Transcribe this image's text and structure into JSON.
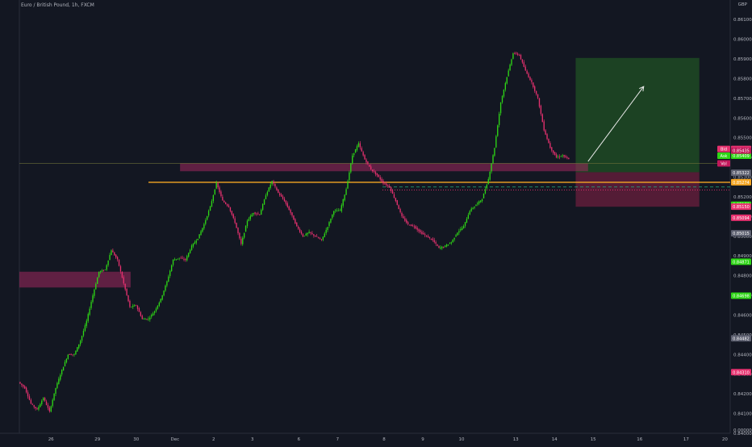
{
  "chart": {
    "title": "Euro / British Pound, 1h, FXCM",
    "currency": "GBP",
    "zero_label": "0.00000",
    "colors": {
      "background": "#131722",
      "up": "#2ed616",
      "down": "#e6316f",
      "grid": "#1e222d",
      "zone_purple": "#a0285f",
      "target_zone": "#1e4a23",
      "stop_zone": "#6b1f3d",
      "orange_line": "#f5a623",
      "arrow": "#e8e8e8"
    },
    "price_tags": [
      {
        "value": "0.85160",
        "color": "#2ed616"
      },
      {
        "value": "0.85094",
        "color": "#e6316f"
      },
      {
        "value": "0.85015",
        "color": "#5d6070"
      },
      {
        "value": "0.85443",
        "color": "#e6316f"
      },
      {
        "value": "0.85409",
        "color": "#2ed616"
      },
      {
        "value": "0.85435",
        "color": "#c2185b"
      },
      {
        "value": "0.85322",
        "color": "#5d6070"
      },
      {
        "value": "0.85274",
        "color": "#f5a623"
      },
      {
        "value": "0.85150",
        "color": "#e6316f"
      },
      {
        "value": "0.84871",
        "color": "#2ed616"
      },
      {
        "value": "0.84698",
        "color": "#2ed616"
      },
      {
        "value": "0.84482",
        "color": "#5d6070"
      },
      {
        "value": "0.84310",
        "color": "#e6316f"
      }
    ],
    "tag_side_labels": [
      "Bid",
      "Ask",
      "Vol"
    ]
  },
  "chart_data": {
    "type": "candlestick",
    "title": "Euro / British Pound, 1h, FXCM",
    "xlabel": "",
    "ylabel": "",
    "ylim": [
      0.84,
      0.8615
    ],
    "y_ticks": [
      "0.86100",
      "0.86000",
      "0.85900",
      "0.85800",
      "0.85700",
      "0.85600",
      "0.85500",
      "0.85400",
      "0.85300",
      "0.85200",
      "0.85100",
      "0.85000",
      "0.84900",
      "0.84800",
      "0.84700",
      "0.84600",
      "0.84500",
      "0.84400",
      "0.84300",
      "0.84200",
      "0.84100",
      "0.84000",
      "0.83900"
    ],
    "x_ticks": [
      "26",
      "29",
      "30",
      "Dec",
      "2",
      "3",
      "6",
      "7",
      "8",
      "9",
      "10",
      "13",
      "14",
      "15",
      "16",
      "17",
      "20"
    ],
    "price_path": [
      [
        0,
        0.8426
      ],
      [
        1,
        0.8423
      ],
      [
        2,
        0.8415
      ],
      [
        3,
        0.8412
      ],
      [
        4,
        0.8418
      ],
      [
        5,
        0.8411
      ],
      [
        6,
        0.8423
      ],
      [
        7,
        0.8432
      ],
      [
        8,
        0.844
      ],
      [
        9,
        0.844
      ],
      [
        10,
        0.8447
      ],
      [
        11,
        0.8457
      ],
      [
        12,
        0.847
      ],
      [
        13,
        0.8482
      ],
      [
        14,
        0.8483
      ],
      [
        15,
        0.8493
      ],
      [
        16,
        0.8488
      ],
      [
        17,
        0.8476
      ],
      [
        18,
        0.8464
      ],
      [
        19,
        0.8465
      ],
      [
        20,
        0.8458
      ],
      [
        21,
        0.8458
      ],
      [
        22,
        0.8462
      ],
      [
        23,
        0.8468
      ],
      [
        24,
        0.8477
      ],
      [
        25,
        0.8488
      ],
      [
        26,
        0.8489
      ],
      [
        27,
        0.8488
      ],
      [
        28,
        0.8495
      ],
      [
        29,
        0.8499
      ],
      [
        30,
        0.8506
      ],
      [
        31,
        0.8515
      ],
      [
        32,
        0.8527
      ],
      [
        33,
        0.8518
      ],
      [
        34,
        0.8515
      ],
      [
        35,
        0.8507
      ],
      [
        36,
        0.8496
      ],
      [
        37,
        0.8508
      ],
      [
        38,
        0.8512
      ],
      [
        39,
        0.8511
      ],
      [
        40,
        0.8521
      ],
      [
        41,
        0.8528
      ],
      [
        42,
        0.8522
      ],
      [
        43,
        0.8518
      ],
      [
        44,
        0.8512
      ],
      [
        45,
        0.8505
      ],
      [
        46,
        0.85
      ],
      [
        47,
        0.8502
      ],
      [
        48,
        0.85
      ],
      [
        49,
        0.8498
      ],
      [
        50,
        0.8505
      ],
      [
        51,
        0.8513
      ],
      [
        52,
        0.8513
      ],
      [
        53,
        0.8524
      ],
      [
        54,
        0.8541
      ],
      [
        55,
        0.8547
      ],
      [
        56,
        0.8539
      ],
      [
        57,
        0.8534
      ],
      [
        58,
        0.8531
      ],
      [
        59,
        0.8527
      ],
      [
        60,
        0.8525
      ],
      [
        61,
        0.8518
      ],
      [
        62,
        0.851
      ],
      [
        63,
        0.8506
      ],
      [
        64,
        0.8505
      ],
      [
        65,
        0.8502
      ],
      [
        66,
        0.85
      ],
      [
        67,
        0.8498
      ],
      [
        68,
        0.8494
      ],
      [
        69,
        0.8495
      ],
      [
        70,
        0.8497
      ],
      [
        71,
        0.8502
      ],
      [
        72,
        0.8505
      ],
      [
        73,
        0.8513
      ],
      [
        74,
        0.8516
      ],
      [
        75,
        0.8519
      ],
      [
        76,
        0.8529
      ],
      [
        77,
        0.8545
      ],
      [
        78,
        0.8568
      ],
      [
        79,
        0.8581
      ],
      [
        80,
        0.8593
      ],
      [
        81,
        0.8592
      ],
      [
        82,
        0.8584
      ],
      [
        83,
        0.8578
      ],
      [
        84,
        0.857
      ],
      [
        85,
        0.8554
      ],
      [
        86,
        0.8545
      ],
      [
        87,
        0.854
      ],
      [
        88,
        0.8541
      ],
      [
        89,
        0.8539
      ]
    ],
    "annotations": {
      "supply_zone_left": {
        "x_range": [
          0,
          18
        ],
        "y_range": [
          0.8474,
          0.8482
        ],
        "color": "#a0285f"
      },
      "purple_zone": {
        "x_range": [
          26,
          92
        ],
        "y_range": [
          0.8533,
          0.8537
        ],
        "color": "#a0285f"
      },
      "orange_level": 0.85274,
      "entry_dashed": 0.8525,
      "stop_dotted": 0.85235,
      "target_zone": {
        "x_range": [
          90,
          110
        ],
        "y_range": [
          0.85325,
          0.85905
        ]
      },
      "stop_zone": {
        "x_range": [
          90,
          110
        ],
        "y_range": [
          0.8515,
          0.85325
        ]
      },
      "trade_arrow": {
        "from": [
          92,
          0.8538
        ],
        "to": [
          101,
          0.8576
        ]
      }
    }
  }
}
